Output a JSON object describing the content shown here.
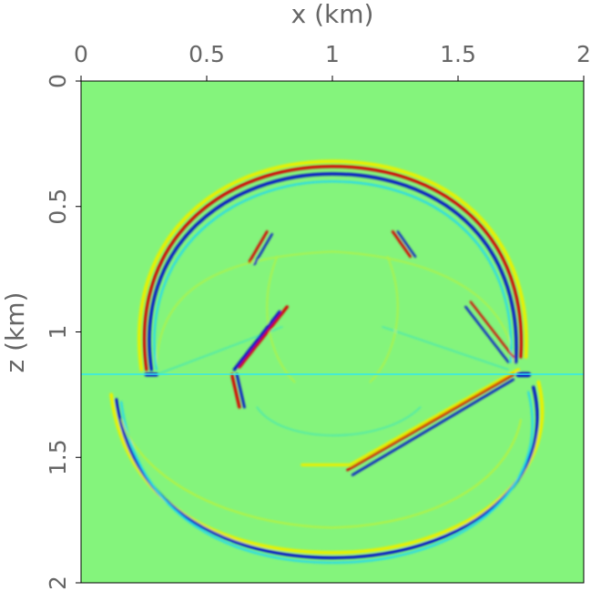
{
  "chart_data": {
    "type": "image",
    "xlabel": "x (km)",
    "ylabel": "z (km)",
    "xlim": [
      0,
      2
    ],
    "ylim": [
      0,
      2
    ],
    "y_inverted": true,
    "xaxis_position": "top",
    "xticks": [
      0,
      0.5,
      1,
      1.5,
      2
    ],
    "yticks": [
      0,
      0.5,
      1,
      1.5,
      2
    ]
  }
}
